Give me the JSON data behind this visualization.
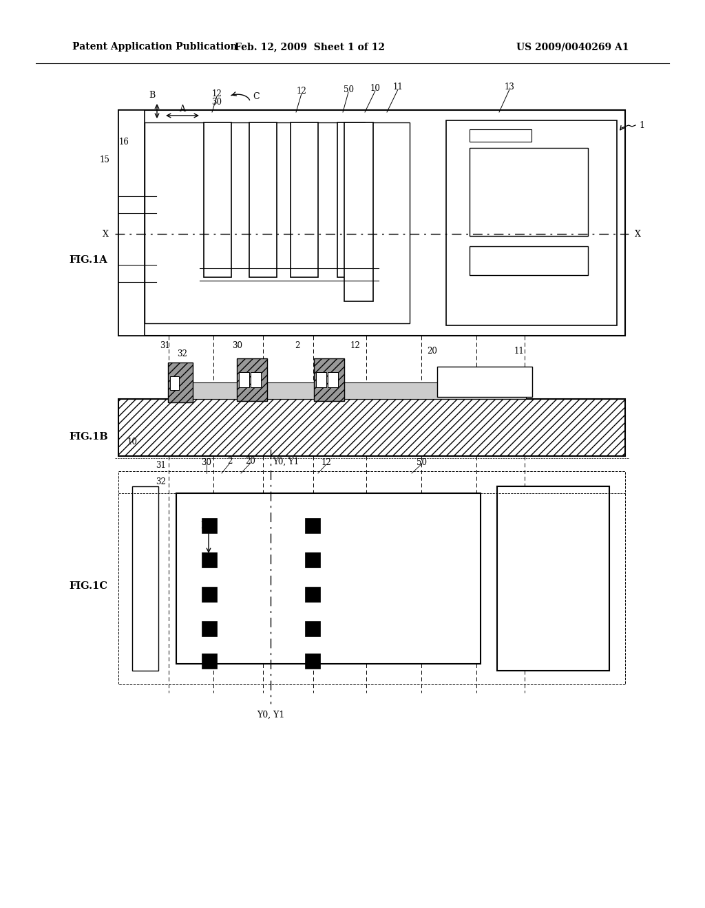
{
  "bg": "#ffffff",
  "lc": "#000000",
  "header_left": "Patent Application Publication",
  "header_mid": "Feb. 12, 2009  Sheet 1 of 12",
  "header_right": "US 2009/0040269 A1"
}
